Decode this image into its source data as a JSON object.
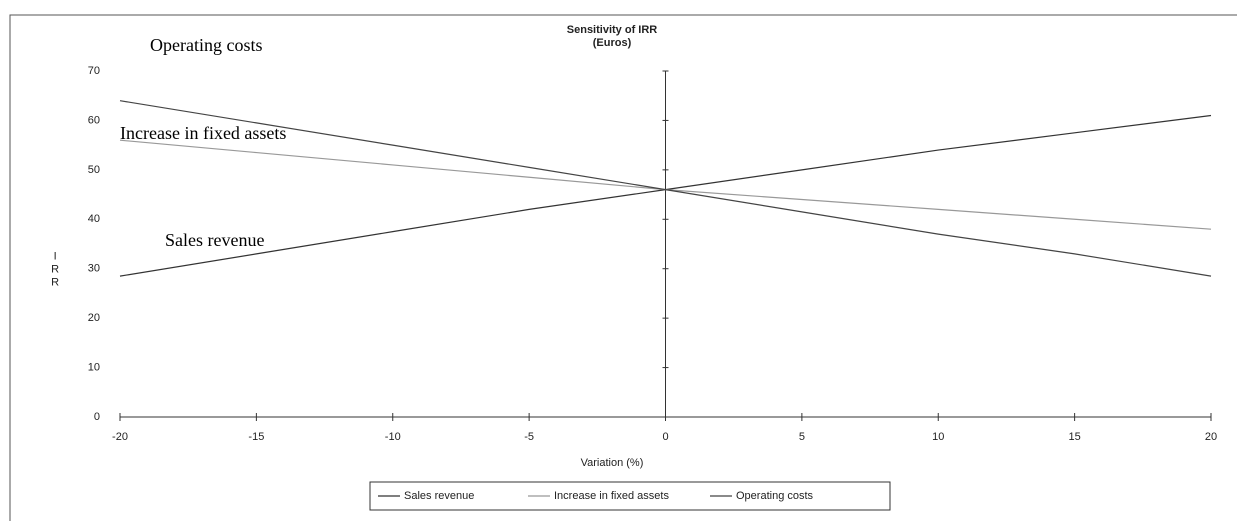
{
  "chart_data": {
    "type": "line",
    "title": "Sensitivity of IRR",
    "subtitle": "(Euros)",
    "x_label": "Variation (%)",
    "y_label": "IRR",
    "x": [
      -20,
      -15,
      -10,
      -5,
      0,
      5,
      10,
      15,
      20
    ],
    "series": [
      {
        "name": "Sales revenue",
        "color": "#333333",
        "values": [
          28.5,
          33,
          37.5,
          42,
          46,
          50,
          54,
          57.5,
          61
        ]
      },
      {
        "name": "Increase in fixed assets",
        "color": "#999999",
        "values": [
          56,
          53.5,
          51,
          48.5,
          46,
          44,
          42,
          40,
          38
        ]
      },
      {
        "name": "Operating costs",
        "color": "#444444",
        "values": [
          64,
          59.5,
          55,
          50.5,
          46,
          41.5,
          37,
          33,
          28.5
        ]
      }
    ],
    "annotations": [
      {
        "text": "Operating costs"
      },
      {
        "text": "Increase in fixed assets"
      },
      {
        "text": "Sales revenue"
      }
    ],
    "xlim": [
      -20,
      20
    ],
    "xticks": [
      -20,
      -15,
      -10,
      -5,
      0,
      5,
      10,
      15,
      20
    ],
    "ylim": [
      0,
      70
    ],
    "yticks": [
      0,
      10,
      20,
      30,
      40,
      50,
      60,
      70
    ],
    "grid": false,
    "legend": "bottom"
  }
}
